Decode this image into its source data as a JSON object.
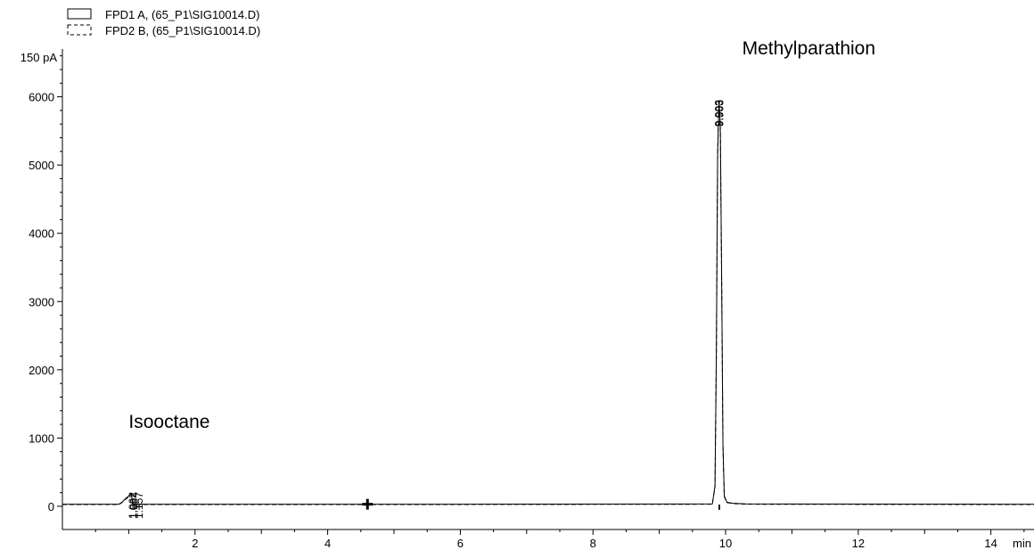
{
  "chart_data": {
    "type": "line",
    "legend": [
      {
        "label": "FPD1 A,  (65_P1\\SIG10014.D)",
        "style": "solid"
      },
      {
        "label": "FPD2 B,  (65_P1\\SIG10014.D)",
        "style": "dashed"
      }
    ],
    "y_unit_label": "150 pA",
    "x_unit_label": "min",
    "xlim": [
      0,
      14.65
    ],
    "ylim": [
      -340,
      6700
    ],
    "x_ticks": [
      2,
      4,
      6,
      8,
      10,
      12,
      14
    ],
    "y_ticks": [
      0,
      1000,
      2000,
      3000,
      4000,
      5000,
      6000
    ],
    "grid": false,
    "series": [
      {
        "style": "solid",
        "x": [
          0,
          0.85,
          0.9,
          0.95,
          1.0,
          1.04,
          1.06,
          1.08,
          1.12,
          1.2,
          4.6,
          9.8,
          9.84,
          9.86,
          9.88,
          9.9,
          9.92,
          9.94,
          9.96,
          9.98,
          10.02,
          10.1,
          10.3,
          14.65
        ],
        "y": [
          30,
          30,
          60,
          110,
          150,
          180,
          40,
          30,
          30,
          30,
          30,
          35,
          300,
          2200,
          5200,
          5950,
          5600,
          3400,
          900,
          150,
          60,
          45,
          35,
          30
        ]
      },
      {
        "style": "dashed",
        "x": [
          0,
          0.85,
          0.9,
          0.95,
          1.0,
          1.04,
          1.06,
          1.08,
          1.12,
          1.2,
          4.6,
          9.8,
          9.84,
          9.86,
          9.88,
          9.9,
          9.92,
          9.94,
          9.96,
          9.98,
          10.02,
          10.1,
          10.3,
          14.65
        ],
        "y": [
          25,
          25,
          55,
          100,
          140,
          170,
          35,
          25,
          25,
          25,
          25,
          30,
          290,
          2150,
          5150,
          5900,
          5550,
          3350,
          880,
          140,
          55,
          40,
          30,
          25
        ]
      }
    ],
    "peak_labels": [
      {
        "x": 1.062,
        "text": "1.062"
      },
      {
        "x": 1.084,
        "text": "1.084"
      },
      {
        "x": 1.157,
        "text": "1.157"
      },
      {
        "x": 9.9,
        "text": "9.903"
      },
      {
        "x": 9.91,
        "text": "9.903"
      }
    ],
    "annotations": [
      {
        "text": "Isooctane",
        "x": 1.0,
        "y": 1150
      },
      {
        "text": "Methylparathion",
        "x": 10.25,
        "y": 6620
      }
    ],
    "marker": {
      "symbol": "plus",
      "x": 4.6,
      "y": 30
    }
  }
}
